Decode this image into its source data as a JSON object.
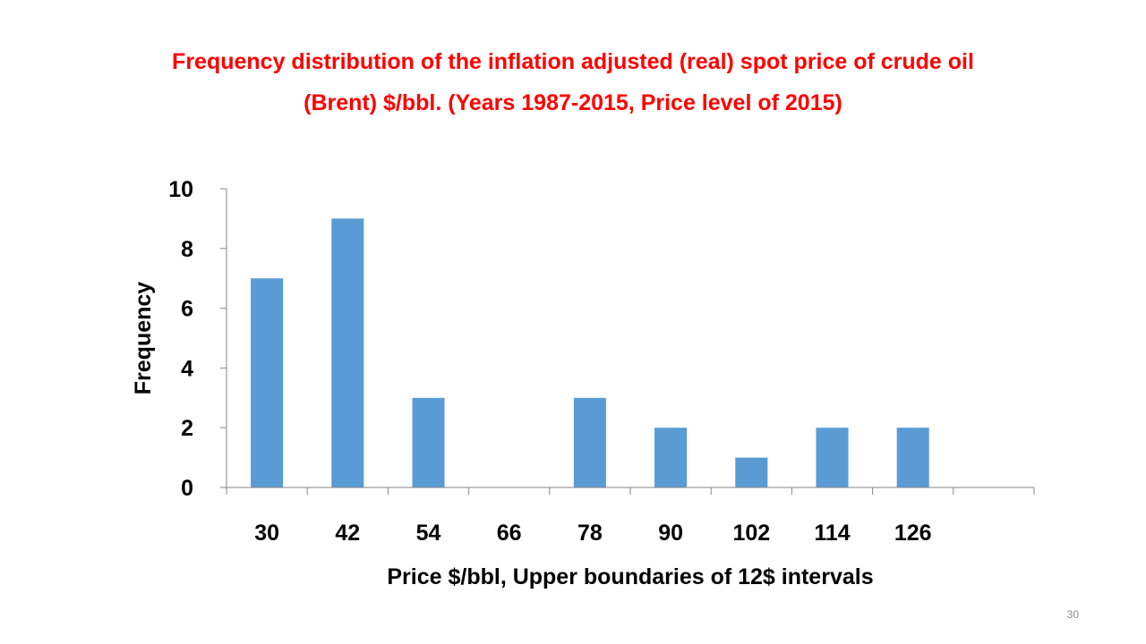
{
  "slide": {
    "title": "Frequency distribution of the inflation adjusted (real) spot price of crude oil (Brent) $/bbl. (Years 1987-2015, Price level of 2015)",
    "slide_number": "30"
  },
  "chart_data": {
    "type": "bar",
    "title": "Frequency distribution of the inflation adjusted (real) spot price of crude oil (Brent) $/bbl. (Years 1987-2015, Price level of 2015)",
    "xlabel": "Price $/bbl, Upper boundaries of 12$ intervals",
    "ylabel": "Frequency",
    "categories": [
      "30",
      "42",
      "54",
      "66",
      "78",
      "90",
      "102",
      "114",
      "126",
      ""
    ],
    "values": [
      7,
      9,
      3,
      0,
      3,
      2,
      1,
      2,
      2,
      0
    ],
    "ylim": [
      0,
      10
    ],
    "yticks": [
      0,
      2,
      4,
      6,
      8,
      10
    ],
    "grid": false,
    "legend": "none",
    "bar_color": "#5b9bd5",
    "title_color": "#ff0000"
  }
}
